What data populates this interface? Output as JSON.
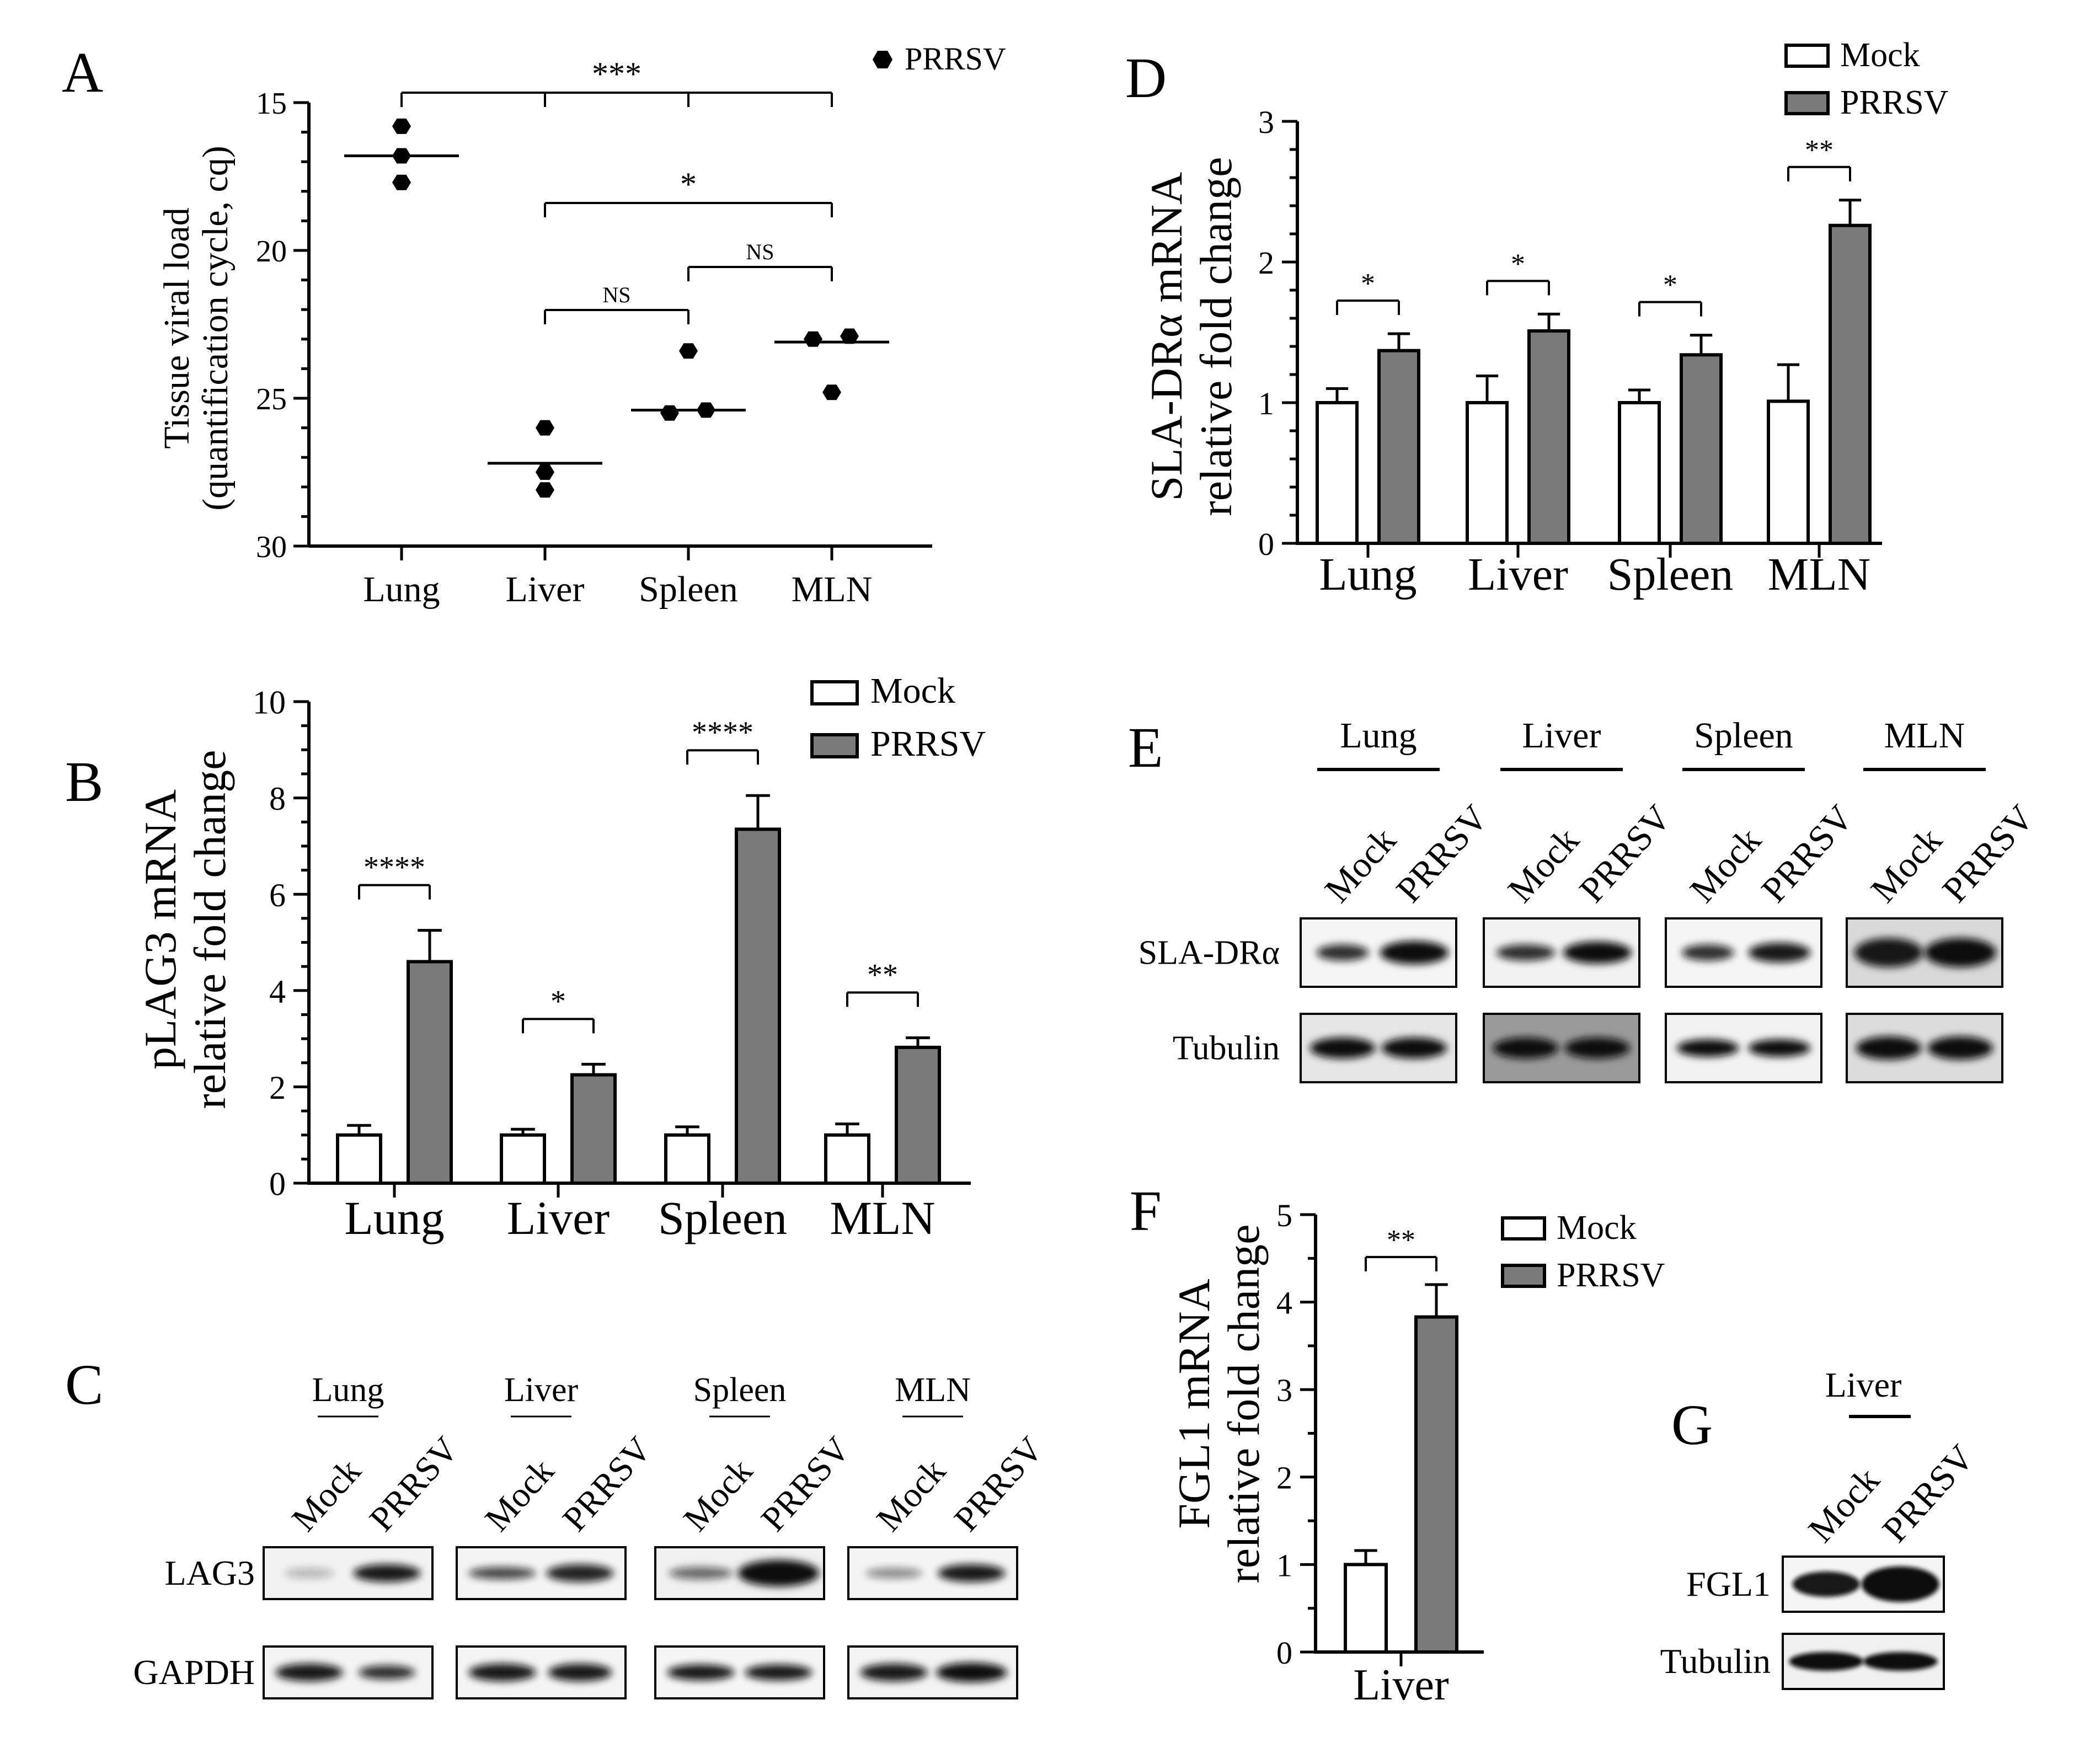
{
  "panels": {
    "A": {
      "letter": "A",
      "legend": "PRRSV",
      "ylabel_line1": "Tissue viral load",
      "ylabel_line2": "(quantification cycle, cq)",
      "sig": {
        "lung_mln": "***",
        "liver_mln": "*",
        "liver_spleen": "NS",
        "spleen_mln": "NS"
      }
    },
    "B": {
      "letter": "B",
      "ylabel_line1": "pLAG3 mRNA",
      "ylabel_line2": "relative fold change",
      "legend_mock": "Mock",
      "legend_prrsv": "PRRSV"
    },
    "D": {
      "letter": "D",
      "ylabel_line1": "SLA-DRα mRNA",
      "ylabel_line2": "relative fold change",
      "legend_mock": "Mock",
      "legend_prrsv": "PRRSV"
    },
    "F": {
      "letter": "F",
      "ylabel_line1": "FGL1 mRNA",
      "ylabel_line2": "relative fold change",
      "legend_mock": "Mock",
      "legend_prrsv": "PRRSV"
    },
    "C": {
      "letter": "C",
      "groups": [
        "Lung",
        "Liver",
        "Spleen",
        "MLN"
      ],
      "lanes": [
        "Mock",
        "PRRSV"
      ],
      "rows": [
        "LAG3",
        "GAPDH"
      ]
    },
    "E": {
      "letter": "E",
      "groups": [
        "Lung",
        "Liver",
        "Spleen",
        "MLN"
      ],
      "lanes": [
        "Mock",
        "PRRSV"
      ],
      "rows": [
        "SLA-DRα",
        "Tubulin"
      ]
    },
    "G": {
      "letter": "G",
      "groups": [
        "Liver"
      ],
      "lanes": [
        "Mock",
        "PRRSV"
      ],
      "rows": [
        "FGL1",
        "Tubulin"
      ]
    }
  },
  "chart_data": [
    {
      "id": "A",
      "type": "scatter",
      "categories": [
        "Lung",
        "Liver",
        "Spleen",
        "MLN"
      ],
      "series": [
        {
          "name": "PRRSV",
          "points": [
            [
              15.8,
              16.8,
              17.7
            ],
            [
              26.0,
              27.5,
              28.1
            ],
            [
              23.4,
              25.5,
              25.4
            ],
            [
              23.0,
              22.9,
              24.8
            ]
          ]
        }
      ],
      "means": [
        16.8,
        27.2,
        25.4,
        23.1
      ],
      "ylim": [
        30,
        15
      ],
      "yticks": [
        15,
        20,
        25,
        30
      ],
      "ylabel": "Tissue viral load (quantification cycle, cq)"
    },
    {
      "id": "B",
      "type": "bar",
      "categories": [
        "Lung",
        "Liver",
        "Spleen",
        "MLN"
      ],
      "series": [
        {
          "name": "Mock",
          "values": [
            1.0,
            1.0,
            1.0,
            1.0
          ],
          "errors": [
            0.2,
            0.12,
            0.17,
            0.23
          ]
        },
        {
          "name": "PRRSV",
          "values": [
            4.6,
            2.25,
            7.35,
            2.82
          ],
          "errors": [
            0.65,
            0.22,
            0.7,
            0.2
          ]
        }
      ],
      "significance": [
        "****",
        "*",
        "****",
        "**"
      ],
      "ylim": [
        0,
        10
      ],
      "yticks": [
        0,
        2,
        4,
        6,
        8,
        10
      ],
      "ylabel": "pLAG3 mRNA relative fold change"
    },
    {
      "id": "D",
      "type": "bar",
      "categories": [
        "Lung",
        "Liver",
        "Spleen",
        "MLN"
      ],
      "series": [
        {
          "name": "Mock",
          "values": [
            1.0,
            1.0,
            1.0,
            1.01
          ],
          "errors": [
            0.1,
            0.19,
            0.09,
            0.26
          ]
        },
        {
          "name": "PRRSV",
          "values": [
            1.37,
            1.51,
            1.34,
            2.26
          ],
          "errors": [
            0.12,
            0.12,
            0.14,
            0.18
          ]
        }
      ],
      "significance": [
        "*",
        "*",
        "*",
        "**"
      ],
      "ylim": [
        0,
        3
      ],
      "yticks": [
        0,
        1,
        2,
        3
      ],
      "ylabel": "SLA-DRα mRNA relative fold change"
    },
    {
      "id": "F",
      "type": "bar",
      "categories": [
        "Liver"
      ],
      "series": [
        {
          "name": "Mock",
          "values": [
            1.0
          ],
          "errors": [
            0.16
          ]
        },
        {
          "name": "PRRSV",
          "values": [
            3.83
          ],
          "errors": [
            0.37
          ]
        }
      ],
      "significance": [
        "**"
      ],
      "ylim": [
        0,
        5
      ],
      "yticks": [
        0,
        1,
        2,
        3,
        4,
        5
      ],
      "ylabel": "FGL1 mRNA relative fold change"
    }
  ]
}
